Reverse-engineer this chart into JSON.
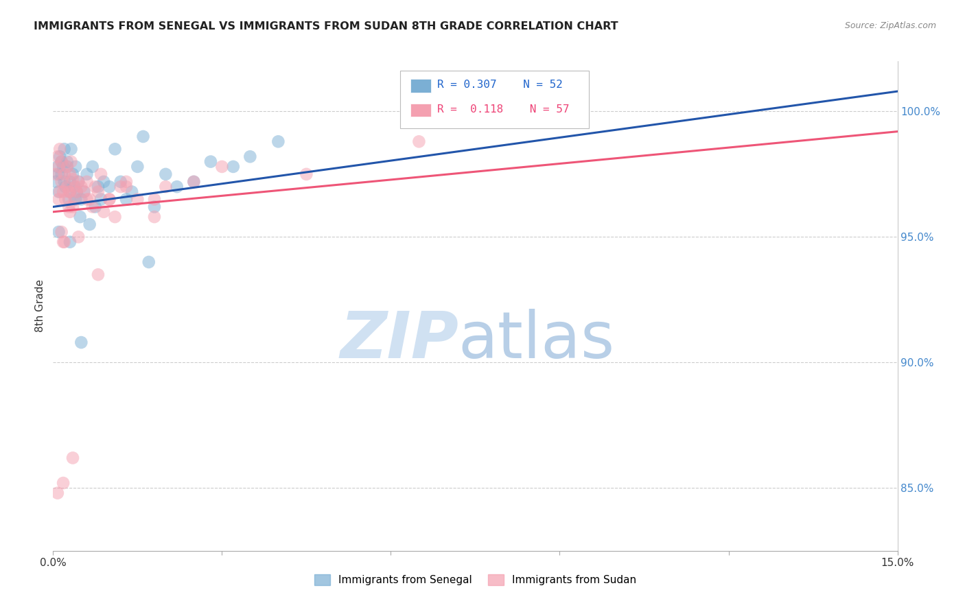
{
  "title": "IMMIGRANTS FROM SENEGAL VS IMMIGRANTS FROM SUDAN 8TH GRADE CORRELATION CHART",
  "source": "Source: ZipAtlas.com",
  "ylabel": "8th Grade",
  "y_ticks": [
    85.0,
    90.0,
    95.0,
    100.0
  ],
  "y_tick_labels": [
    "85.0%",
    "90.0%",
    "95.0%",
    "100.0%"
  ],
  "x_range": [
    0.0,
    15.0
  ],
  "y_range": [
    82.5,
    102.0
  ],
  "color_senegal": "#7BAFD4",
  "color_sudan": "#F4A0B0",
  "color_line_senegal": "#2255AA",
  "color_line_sudan": "#EE5577",
  "senegal_x": [
    0.05,
    0.08,
    0.1,
    0.1,
    0.12,
    0.15,
    0.15,
    0.18,
    0.2,
    0.2,
    0.22,
    0.25,
    0.25,
    0.28,
    0.3,
    0.3,
    0.32,
    0.35,
    0.38,
    0.4,
    0.4,
    0.42,
    0.45,
    0.48,
    0.5,
    0.55,
    0.6,
    0.65,
    0.7,
    0.75,
    0.8,
    0.85,
    0.9,
    1.0,
    1.1,
    1.2,
    1.3,
    1.4,
    1.5,
    1.6,
    1.7,
    1.8,
    2.0,
    2.2,
    2.5,
    2.8,
    3.2,
    3.5,
    4.0,
    0.1,
    0.3,
    0.5
  ],
  "senegal_y": [
    97.2,
    97.8,
    97.5,
    96.8,
    98.2,
    98.0,
    97.5,
    97.8,
    98.5,
    97.2,
    97.0,
    97.8,
    98.0,
    96.5,
    97.2,
    96.8,
    98.5,
    97.5,
    97.0,
    97.8,
    96.5,
    96.8,
    97.2,
    95.8,
    96.5,
    96.8,
    97.5,
    95.5,
    97.8,
    96.2,
    97.0,
    96.5,
    97.2,
    97.0,
    98.5,
    97.2,
    96.5,
    96.8,
    97.8,
    99.0,
    94.0,
    96.2,
    97.5,
    97.0,
    97.2,
    98.0,
    97.8,
    98.2,
    98.8,
    95.2,
    94.8,
    90.8
  ],
  "sudan_x": [
    0.05,
    0.08,
    0.1,
    0.12,
    0.15,
    0.15,
    0.18,
    0.2,
    0.22,
    0.25,
    0.25,
    0.28,
    0.3,
    0.3,
    0.32,
    0.35,
    0.38,
    0.4,
    0.42,
    0.45,
    0.5,
    0.55,
    0.6,
    0.65,
    0.7,
    0.75,
    0.8,
    0.85,
    0.9,
    1.0,
    1.1,
    1.2,
    1.3,
    1.5,
    1.8,
    2.0,
    2.5,
    3.0,
    0.1,
    0.15,
    0.2,
    0.28,
    0.35,
    0.45,
    0.6,
    0.8,
    1.0,
    1.3,
    0.12,
    0.18,
    0.3,
    1.8,
    4.5,
    6.5,
    0.08,
    0.18,
    0.35
  ],
  "sudan_y": [
    97.5,
    98.2,
    97.8,
    98.5,
    97.2,
    98.0,
    96.8,
    97.5,
    96.5,
    97.8,
    97.0,
    96.2,
    97.5,
    96.8,
    98.0,
    97.3,
    96.5,
    97.0,
    96.8,
    97.2,
    97.0,
    96.8,
    97.2,
    96.5,
    96.2,
    97.0,
    96.8,
    97.5,
    96.0,
    96.5,
    95.8,
    97.0,
    97.2,
    96.5,
    95.8,
    97.0,
    97.2,
    97.8,
    96.5,
    95.2,
    94.8,
    96.8,
    96.2,
    95.0,
    96.5,
    93.5,
    96.5,
    97.0,
    96.8,
    94.8,
    96.0,
    96.5,
    97.5,
    98.8,
    84.8,
    85.2,
    86.2
  ],
  "line_senegal_x0": 0.0,
  "line_senegal_y0": 96.2,
  "line_senegal_x1": 15.0,
  "line_senegal_y1": 100.8,
  "line_sudan_x0": 0.0,
  "line_sudan_y0": 96.0,
  "line_sudan_x1": 15.0,
  "line_sudan_y1": 99.2
}
